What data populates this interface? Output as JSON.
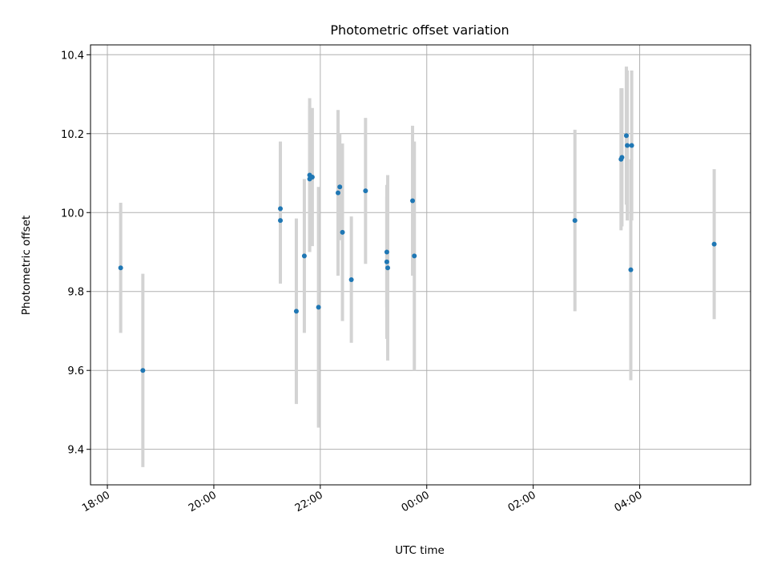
{
  "chart_data": {
    "type": "scatter",
    "title": "Photometric offset variation",
    "xlabel": "UTC time",
    "ylabel": "Photometric offset",
    "x_ticks": [
      "18:00",
      "20:00",
      "22:00",
      "00:00",
      "02:00",
      "04:00"
    ],
    "x_tick_minutes": [
      0,
      120,
      240,
      360,
      480,
      600
    ],
    "x_range_minutes": [
      -19,
      725
    ],
    "y_ticks": [
      "9.4",
      "9.6",
      "9.8",
      "10.0",
      "10.2",
      "10.4"
    ],
    "ylim": [
      9.31,
      10.425
    ],
    "grid": true,
    "points": [
      {
        "t": "18:15",
        "y": 9.86,
        "err": 0.165
      },
      {
        "t": "18:40",
        "y": 9.6,
        "err": 0.245
      },
      {
        "t": "21:15",
        "y": 10.01,
        "err": 0.17
      },
      {
        "t": "21:15",
        "y": 9.98,
        "err": 0.16
      },
      {
        "t": "21:33",
        "y": 9.75,
        "err": 0.235
      },
      {
        "t": "21:42",
        "y": 9.89,
        "err": 0.195
      },
      {
        "t": "21:48",
        "y": 10.095,
        "err": 0.195
      },
      {
        "t": "21:48",
        "y": 10.085,
        "err": 0.185
      },
      {
        "t": "21:51",
        "y": 10.09,
        "err": 0.175
      },
      {
        "t": "21:58",
        "y": 9.76,
        "err": 0.305
      },
      {
        "t": "22:20",
        "y": 10.05,
        "err": 0.21
      },
      {
        "t": "22:22",
        "y": 10.065,
        "err": 0.135
      },
      {
        "t": "22:25",
        "y": 9.95,
        "err": 0.225
      },
      {
        "t": "22:35",
        "y": 9.83,
        "err": 0.16
      },
      {
        "t": "22:51",
        "y": 10.055,
        "err": 0.185
      },
      {
        "t": "23:15",
        "y": 9.9,
        "err": 0.14
      },
      {
        "t": "23:15",
        "y": 9.875,
        "err": 0.195
      },
      {
        "t": "23:16",
        "y": 9.86,
        "err": 0.235
      },
      {
        "t": "23:44",
        "y": 10.03,
        "err": 0.19
      },
      {
        "t": "23:46",
        "y": 9.89,
        "err": 0.29
      },
      {
        "t": "02:47",
        "y": 9.98,
        "err": 0.23
      },
      {
        "t": "03:39",
        "y": 10.135,
        "err": 0.18
      },
      {
        "t": "03:40",
        "y": 10.14,
        "err": 0.175
      },
      {
        "t": "03:45",
        "y": 10.195,
        "err": 0.175
      },
      {
        "t": "03:46",
        "y": 10.17,
        "err": 0.19
      },
      {
        "t": "03:50",
        "y": 9.855,
        "err": 0.28
      },
      {
        "t": "03:51",
        "y": 10.17,
        "err": 0.19
      },
      {
        "t": "05:24",
        "y": 9.92,
        "err": 0.19
      }
    ],
    "colors": {
      "point": "#1f77b4",
      "errorbar": "#d3d3d3",
      "grid": "#b0b0b0",
      "axes": "#000000"
    }
  }
}
